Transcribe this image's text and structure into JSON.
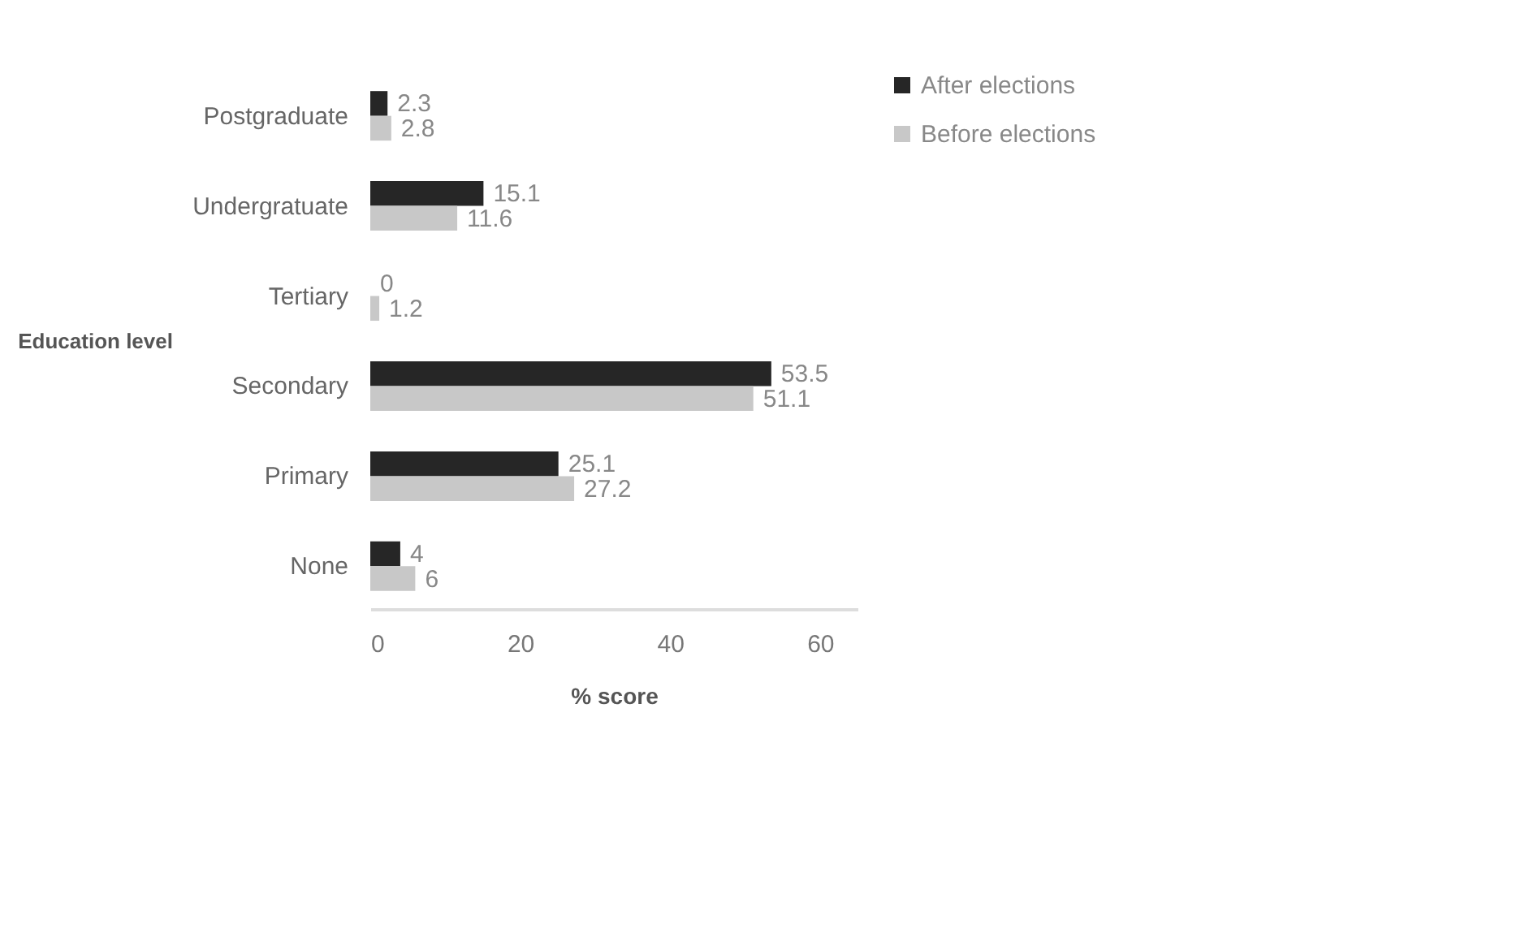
{
  "chart_data": {
    "type": "bar",
    "orientation": "horizontal",
    "xlabel": "% score",
    "ylabel": "Education level",
    "categories": [
      "Postgraduate",
      "Undergratuate",
      "Tertiary",
      "Secondary",
      "Primary",
      "None"
    ],
    "series": [
      {
        "name": "After elections",
        "color": "#262626",
        "values": [
          2.3,
          15.1,
          0,
          53.5,
          25.1,
          4
        ]
      },
      {
        "name": "Before elections",
        "color": "#c8c8c8",
        "values": [
          2.8,
          11.6,
          1.2,
          51.1,
          27.2,
          6
        ]
      }
    ],
    "xlim": [
      0,
      65
    ],
    "xticks": [
      0,
      20,
      40,
      60
    ],
    "data_labels": true,
    "legend": "right"
  }
}
